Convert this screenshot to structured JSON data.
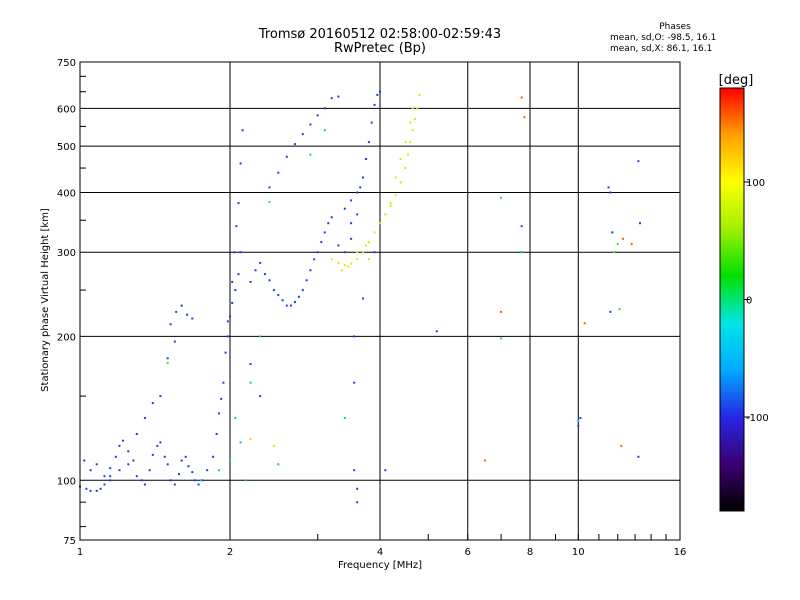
{
  "header": {
    "title_line1": "Tromsø 20160512 02:58:00-02:59:43",
    "title_line2": "RwPretec (Bp)"
  },
  "phases_box": {
    "title": "Phases",
    "stat_o": "mean, sd,O: -98.5, 16.1",
    "stat_x": "mean, sd,X:  86.1, 16.1"
  },
  "chart_data": {
    "type": "scatter",
    "xlabel": "Frequency [MHz]",
    "ylabel": "Stationary phase Virtual Height [km]",
    "x_scale": "log",
    "y_scale": "log",
    "xlim": [
      1,
      16
    ],
    "ylim": [
      75,
      750
    ],
    "x_ticks": [
      1,
      2,
      4,
      6,
      8,
      10,
      16
    ],
    "y_ticks": [
      75,
      100,
      200,
      300,
      400,
      500,
      600,
      750
    ],
    "grid": true,
    "colorbar": {
      "label": "[deg]",
      "range": [
        -180,
        180
      ],
      "ticks": [
        100,
        0,
        -100
      ],
      "colors": [
        "#000000",
        "#3b0070",
        "#2626e6",
        "#00aaff",
        "#00e6e6",
        "#00e000",
        "#a0f000",
        "#ffff00",
        "#ffa000",
        "#ff0000"
      ]
    },
    "series": [
      {
        "mode": "O",
        "color": "#1a3ee6",
        "points": [
          [
            1.0,
            97
          ],
          [
            1.03,
            96
          ],
          [
            1.05,
            95
          ],
          [
            1.08,
            95
          ],
          [
            1.1,
            96
          ],
          [
            1.12,
            98
          ],
          [
            1.15,
            100
          ],
          [
            1.02,
            110
          ],
          [
            1.05,
            105
          ],
          [
            1.08,
            108
          ],
          [
            1.12,
            102
          ],
          [
            1.15,
            106
          ],
          [
            1.18,
            112
          ],
          [
            1.2,
            118
          ],
          [
            1.22,
            121
          ],
          [
            1.25,
            115
          ],
          [
            1.28,
            110
          ],
          [
            1.3,
            102
          ],
          [
            1.33,
            100
          ],
          [
            1.35,
            98
          ],
          [
            1.38,
            105
          ],
          [
            1.4,
            113
          ],
          [
            1.43,
            118
          ],
          [
            1.45,
            120
          ],
          [
            1.48,
            112
          ],
          [
            1.5,
            108
          ],
          [
            1.52,
            100
          ],
          [
            1.55,
            98
          ],
          [
            1.58,
            103
          ],
          [
            1.6,
            110
          ],
          [
            1.63,
            112
          ],
          [
            1.65,
            107
          ],
          [
            1.68,
            104
          ],
          [
            1.7,
            100
          ],
          [
            1.73,
            98
          ],
          [
            1.76,
            100
          ],
          [
            1.8,
            105
          ],
          [
            1.85,
            112
          ],
          [
            1.88,
            125
          ],
          [
            1.9,
            138
          ],
          [
            1.92,
            148
          ],
          [
            1.94,
            160
          ],
          [
            1.96,
            185
          ],
          [
            1.98,
            200
          ],
          [
            2.0,
            220
          ],
          [
            2.02,
            260
          ],
          [
            2.04,
            300
          ],
          [
            2.06,
            340
          ],
          [
            2.08,
            380
          ],
          [
            2.1,
            460
          ],
          [
            2.12,
            540
          ],
          [
            2.1,
            300
          ],
          [
            2.08,
            270
          ],
          [
            2.05,
            250
          ],
          [
            2.02,
            235
          ],
          [
            1.98,
            215
          ],
          [
            1.52,
            212
          ],
          [
            1.56,
            225
          ],
          [
            1.6,
            232
          ],
          [
            1.64,
            222
          ],
          [
            1.68,
            218
          ],
          [
            1.5,
            180
          ],
          [
            1.55,
            195
          ],
          [
            1.45,
            150
          ],
          [
            1.4,
            145
          ],
          [
            1.35,
            135
          ],
          [
            1.3,
            125
          ],
          [
            1.2,
            105
          ],
          [
            1.25,
            108
          ],
          [
            1.15,
            102
          ],
          [
            2.2,
            260
          ],
          [
            2.25,
            275
          ],
          [
            2.3,
            285
          ],
          [
            2.35,
            270
          ],
          [
            2.4,
            262
          ],
          [
            2.45,
            250
          ],
          [
            2.5,
            244
          ],
          [
            2.55,
            238
          ],
          [
            2.6,
            232
          ],
          [
            2.65,
            232
          ],
          [
            2.7,
            236
          ],
          [
            2.75,
            242
          ],
          [
            2.8,
            250
          ],
          [
            2.85,
            262
          ],
          [
            2.9,
            275
          ],
          [
            2.95,
            290
          ],
          [
            3.0,
            300
          ],
          [
            3.05,
            315
          ],
          [
            3.1,
            330
          ],
          [
            3.15,
            345
          ],
          [
            3.2,
            355
          ],
          [
            2.4,
            410
          ],
          [
            2.5,
            440
          ],
          [
            2.6,
            475
          ],
          [
            2.7,
            505
          ],
          [
            2.8,
            530
          ],
          [
            2.9,
            555
          ],
          [
            3.0,
            580
          ],
          [
            3.1,
            600
          ],
          [
            3.2,
            630
          ],
          [
            3.3,
            635
          ],
          [
            3.4,
            370
          ],
          [
            3.5,
            385
          ],
          [
            3.6,
            400
          ],
          [
            3.65,
            410
          ],
          [
            3.7,
            430
          ],
          [
            3.75,
            470
          ],
          [
            3.8,
            510
          ],
          [
            3.85,
            560
          ],
          [
            3.9,
            610
          ],
          [
            3.95,
            640
          ],
          [
            4.0,
            650
          ],
          [
            3.5,
            345
          ],
          [
            3.6,
            360
          ],
          [
            3.55,
            160
          ],
          [
            3.55,
            200
          ],
          [
            3.6,
            90
          ],
          [
            3.6,
            96
          ],
          [
            3.55,
            105
          ],
          [
            2.3,
            150
          ],
          [
            2.2,
            175
          ],
          [
            3.5,
            320
          ],
          [
            3.4,
            300
          ],
          [
            3.3,
            310
          ],
          [
            3.7,
            240
          ],
          [
            3.9,
            300
          ],
          [
            4.1,
            105
          ],
          [
            5.2,
            205
          ],
          [
            7.7,
            340
          ],
          [
            11.5,
            410
          ],
          [
            11.6,
            400
          ],
          [
            11.7,
            330
          ],
          [
            11.6,
            225
          ],
          [
            13.2,
            465
          ],
          [
            13.3,
            345
          ],
          [
            13.2,
            112
          ],
          [
            10.0,
            130
          ],
          [
            10.1,
            135
          ]
        ]
      },
      {
        "mode": "X",
        "color": "#e6e600",
        "points": [
          [
            3.2,
            290
          ],
          [
            3.3,
            285
          ],
          [
            3.4,
            282
          ],
          [
            3.5,
            284
          ],
          [
            3.6,
            290
          ],
          [
            3.7,
            300
          ],
          [
            3.8,
            315
          ],
          [
            3.9,
            330
          ],
          [
            4.0,
            345
          ],
          [
            4.1,
            360
          ],
          [
            4.2,
            375
          ],
          [
            4.3,
            395
          ],
          [
            4.4,
            420
          ],
          [
            4.5,
            450
          ],
          [
            4.55,
            480
          ],
          [
            4.6,
            510
          ],
          [
            4.65,
            540
          ],
          [
            4.7,
            570
          ],
          [
            4.75,
            600
          ],
          [
            4.8,
            640
          ],
          [
            4.2,
            380
          ],
          [
            4.3,
            430
          ],
          [
            4.4,
            470
          ],
          [
            4.5,
            510
          ],
          [
            4.6,
            560
          ],
          [
            4.65,
            600
          ],
          [
            3.35,
            275
          ],
          [
            3.45,
            280
          ],
          [
            3.6,
            300
          ],
          [
            3.75,
            310
          ]
        ]
      },
      {
        "mode": "other",
        "color": "#00c8c8",
        "points": [
          [
            2.0,
            110
          ],
          [
            2.05,
            135
          ],
          [
            2.1,
            120
          ],
          [
            2.5,
            108
          ],
          [
            2.2,
            160
          ],
          [
            3.4,
            135
          ],
          [
            1.9,
            105
          ],
          [
            2.15,
            100
          ],
          [
            2.3,
            200
          ],
          [
            1.75,
            100
          ],
          [
            2.9,
            480
          ],
          [
            3.1,
            540
          ],
          [
            10.0,
            133
          ],
          [
            7.7,
            300
          ]
        ]
      },
      {
        "mode": "other",
        "color": "#ff5a00",
        "points": [
          [
            6.5,
            110
          ],
          [
            7.0,
            225
          ],
          [
            10.3,
            213
          ],
          [
            12.2,
            118
          ],
          [
            12.3,
            320
          ],
          [
            7.7,
            632
          ],
          [
            7.8,
            575
          ],
          [
            12.8,
            312
          ]
        ]
      },
      {
        "mode": "other",
        "color": "#3cdc3c",
        "points": [
          [
            1.5,
            176
          ],
          [
            7.0,
            390
          ],
          [
            12.0,
            312
          ],
          [
            12.1,
            228
          ],
          [
            7.0,
            198
          ],
          [
            11.8,
            300
          ],
          [
            2.4,
            382
          ]
        ]
      },
      {
        "mode": "other",
        "color": "#ffd200",
        "points": [
          [
            2.45,
            118
          ],
          [
            2.2,
            122
          ],
          [
            3.8,
            290
          ]
        ]
      }
    ]
  }
}
